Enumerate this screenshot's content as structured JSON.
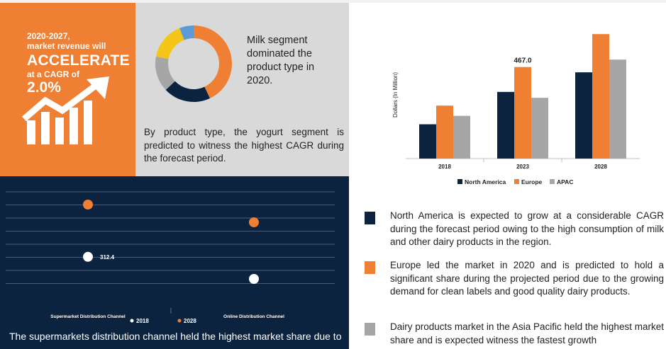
{
  "colors": {
    "orange": "#ef7f33",
    "navy": "#0c2340",
    "grey": "#a6a6a6",
    "yellow": "#f5c518",
    "blue": "#5b9bd5",
    "panel_grey": "#d9d9d9"
  },
  "highlight": {
    "line1": "2020-2027,",
    "line2": "market revenue will",
    "line3": "ACCELERATE",
    "line4": "at a CAGR of",
    "line5": "2.0%",
    "icon": "growth-chart-arrow-icon"
  },
  "product_panel": {
    "donut_caption": "Milk segment dominated the product type in 2020.",
    "yogurt_text": "By product type, the yogurt segment is predicted to witness the highest CAGR during the forecast period."
  },
  "chart_data": [
    {
      "type": "bar",
      "title": "",
      "ylabel": "Dollars (In Million)",
      "categories": [
        "2018",
        "2023",
        "2028"
      ],
      "series": [
        {
          "name": "North America",
          "color": "#0c2340",
          "values": [
            175,
            340,
            440
          ]
        },
        {
          "name": "Europe",
          "color": "#ef7f33",
          "values": [
            270,
            467.0,
            635
          ]
        },
        {
          "name": "APAC",
          "color": "#a6a6a6",
          "values": [
            218,
            310,
            505
          ]
        }
      ],
      "data_labels": [
        {
          "series": "Europe",
          "category": "2023",
          "text": "467.0"
        }
      ],
      "ylim": [
        0,
        650
      ],
      "legend": "bottom",
      "grid": false
    },
    {
      "type": "pie",
      "donut": true,
      "slices": [
        {
          "color": "#ef7f33",
          "value": 43
        },
        {
          "color": "#0c2340",
          "value": 20
        },
        {
          "color": "#a6a6a6",
          "value": 15
        },
        {
          "color": "#f5c518",
          "value": 16
        },
        {
          "color": "#5b9bd5",
          "value": 6
        }
      ]
    },
    {
      "type": "scatter",
      "categories": [
        "Supermarket Distribution Channel",
        "Online Distribution Channel"
      ],
      "series": [
        {
          "name": "2018",
          "color": "#ffffff",
          "values": [
            312.4,
            250
          ]
        },
        {
          "name": "2028",
          "color": "#ef7f33",
          "values": [
            460,
            410
          ]
        }
      ],
      "data_labels": [
        {
          "series": "2018",
          "category": "Supermarket Distribution Channel",
          "text": "312.4"
        }
      ],
      "ylim": [
        200,
        500
      ],
      "grid": true,
      "legend": "bottom"
    }
  ],
  "channel_panel": {
    "bottom_text": "The supermarkets distribution channel held the highest market share due to"
  },
  "bullets": [
    {
      "color": "#0c2340",
      "text": "North America is expected to grow at a considerable CAGR during the forecast period owing to the high consumption of milk and other dairy products in the region."
    },
    {
      "color": "#ef7f33",
      "text": "Europe led the market in 2020 and is predicted to hold a significant share during the projected period due to the growing demand for clean labels and good quality dairy products."
    },
    {
      "color": "#a6a6a6",
      "text": "Dairy products market in the Asia Pacific held the highest market share and is expected witness the fastest growth"
    }
  ]
}
